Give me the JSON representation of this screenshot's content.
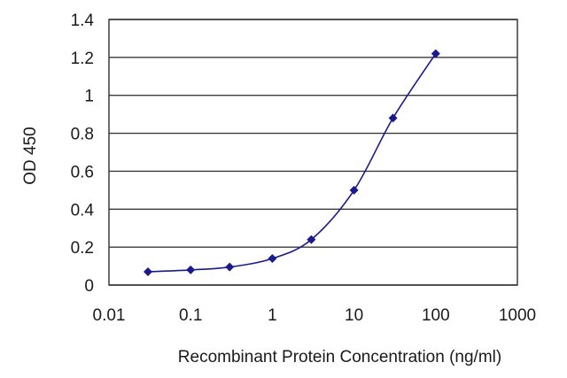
{
  "chart_data": {
    "type": "scatter",
    "title": "",
    "xlabel": "Recombinant Protein Concentration (ng/ml)",
    "ylabel": "OD 450",
    "x_scale": "log",
    "xlim": [
      0.01,
      1000
    ],
    "ylim": [
      0,
      1.4
    ],
    "x_ticks": [
      "0.01",
      "0.1",
      "1",
      "10",
      "100",
      "1000"
    ],
    "y_ticks": [
      "0",
      "0.2",
      "0.4",
      "0.6",
      "0.8",
      "1",
      "1.2",
      "1.4"
    ],
    "grid": "horizontal",
    "series": [
      {
        "x": [
          0.03,
          0.1,
          0.3,
          1,
          3,
          10,
          30,
          100
        ],
        "y": [
          0.07,
          0.08,
          0.095,
          0.14,
          0.24,
          0.5,
          0.88,
          1.22
        ]
      }
    ],
    "colors": {
      "series": "#1a1a8c",
      "grid": "#3a3a3a",
      "frame": "#3a3a3a"
    }
  }
}
